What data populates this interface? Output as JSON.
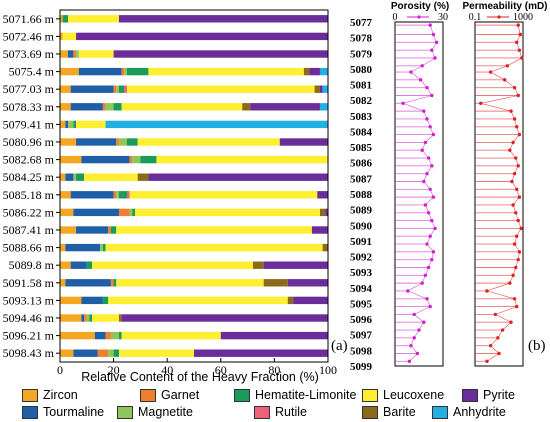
{
  "chart_data": [
    {
      "type": "bar",
      "orientation": "horizontal",
      "stacked": true,
      "panel_label": "(a)",
      "xlabel": "Relative Content of the Heavy Fraction (%)",
      "xlim": [
        0,
        100
      ],
      "xticks": [
        "0",
        "20",
        "40",
        "60",
        "80",
        "100"
      ],
      "categories": [
        "5071.66 m",
        "5072.46 m",
        "5073.69 m",
        "5075.4 m",
        "5077.03 m",
        "5078.33 m",
        "5079.41 m",
        "5080.96 m",
        "5082.68 m",
        "5084.25 m",
        "5085.18 m",
        "5086.22 m",
        "5087.41 m",
        "5088.66 m",
        "5089.8 m",
        "5091.58 m",
        "5093.13 m",
        "5094.46 m",
        "5096.21 m",
        "5098.43 m"
      ],
      "series": [
        {
          "name": "Zircon",
          "color": "#f5a623",
          "values": [
            1,
            1,
            3,
            7,
            4,
            4,
            2,
            6,
            8,
            2,
            4,
            5,
            6,
            2,
            4,
            2,
            8,
            8,
            13,
            5
          ]
        },
        {
          "name": "Tourmaline",
          "color": "#1f5fa8",
          "values": [
            0,
            0,
            2,
            16,
            16,
            12,
            1,
            15,
            18,
            3,
            16,
            17,
            12,
            13,
            6,
            17,
            8,
            1,
            4,
            9
          ]
        },
        {
          "name": "Garnet",
          "color": "#ef7f2f",
          "values": [
            0,
            0,
            1,
            1,
            1,
            1,
            0,
            1,
            1,
            0,
            1,
            4,
            1,
            0,
            0,
            1,
            0,
            1,
            2,
            4
          ]
        },
        {
          "name": "Magnetite",
          "color": "#8fc65a",
          "values": [
            0,
            0,
            1,
            1,
            1,
            3,
            2,
            3,
            3,
            1,
            1,
            1,
            0,
            1,
            0,
            0,
            0,
            1,
            3,
            2
          ]
        },
        {
          "name": "Hematite-Limonite",
          "color": "#1a9a5b",
          "values": [
            2,
            0,
            0,
            8,
            2,
            3,
            1,
            4,
            6,
            3,
            3,
            1,
            2,
            1,
            2,
            1,
            2,
            1,
            1,
            2
          ]
        },
        {
          "name": "Rutile",
          "color": "#f06078",
          "values": [
            0,
            0,
            0,
            0,
            1,
            0,
            0,
            0,
            0,
            0,
            1,
            0,
            0,
            0,
            0,
            0,
            0,
            0,
            0,
            0
          ]
        },
        {
          "name": "Leucoxene",
          "color": "#ffef2f",
          "values": [
            19,
            5,
            13,
            58,
            70,
            45,
            11,
            53,
            64,
            20,
            70,
            69,
            73,
            81,
            60,
            55,
            67,
            10,
            37,
            28
          ]
        },
        {
          "name": "Barite",
          "color": "#8b6a1a",
          "values": [
            0,
            0,
            0,
            2,
            2,
            3,
            0,
            0,
            0,
            4,
            0,
            2,
            0,
            2,
            4,
            9,
            2,
            1,
            0,
            0
          ]
        },
        {
          "name": "Pyrite",
          "color": "#6a2d9a",
          "values": [
            78,
            94,
            80,
            4,
            1,
            26,
            0,
            18,
            0,
            67,
            4,
            1,
            6,
            0,
            24,
            15,
            13,
            77,
            40,
            50
          ]
        },
        {
          "name": "Anhydrite",
          "color": "#22b0e2",
          "values": [
            0,
            0,
            0,
            3,
            2,
            3,
            83,
            0,
            0,
            0,
            0,
            0,
            0,
            0,
            0,
            0,
            0,
            0,
            0,
            0
          ]
        }
      ]
    },
    {
      "type": "line",
      "panel_label": "(b)",
      "depth_range": [
        5077,
        5099
      ],
      "depth_ticks": [
        "5077",
        "5078",
        "5079",
        "5080",
        "5081",
        "5082",
        "5083",
        "5084",
        "5085",
        "5086",
        "5087",
        "5088",
        "5089",
        "5090",
        "5091",
        "5092",
        "5093",
        "5094",
        "5095",
        "5096",
        "5097",
        "5098",
        "5099"
      ],
      "tracks": [
        {
          "title": "Porosity (%)",
          "color": "#d020d0",
          "xlim": [
            0,
            30
          ],
          "xticks": [
            "0",
            "30"
          ],
          "depth": [
            5077.2,
            5077.8,
            5078.3,
            5078.8,
            5079.3,
            5079.8,
            5080.2,
            5080.7,
            5081.2,
            5081.7,
            5082.2,
            5082.7,
            5083.2,
            5083.7,
            5084.2,
            5084.7,
            5085.2,
            5085.7,
            5086.2,
            5086.7,
            5087.2,
            5087.7,
            5088.2,
            5088.7,
            5089.2,
            5089.7,
            5090.2,
            5090.7,
            5091.2,
            5091.7,
            5092.2,
            5092.7,
            5093.2,
            5093.7,
            5094.2,
            5094.7,
            5095.2,
            5095.7,
            5096.2,
            5096.7,
            5097.2,
            5097.7,
            5098.2,
            5098.7
          ],
          "values": [
            22,
            24,
            26,
            23,
            25,
            17,
            10,
            16,
            20,
            23,
            5,
            18,
            20,
            22,
            24,
            19,
            17,
            21,
            23,
            20,
            18,
            22,
            24,
            19,
            21,
            23,
            25,
            22,
            20,
            24,
            23,
            21,
            19,
            17,
            8,
            20,
            22,
            12,
            18,
            15,
            12,
            10,
            14,
            9
          ]
        },
        {
          "title": "Permeability (mD)",
          "color": "#e02020",
          "scale": "log",
          "xlim": [
            0.1,
            1000
          ],
          "xticks": [
            "0.1",
            "1000"
          ],
          "depth": [
            5077.2,
            5077.8,
            5078.3,
            5078.8,
            5079.3,
            5079.8,
            5080.2,
            5080.7,
            5081.2,
            5081.7,
            5082.2,
            5082.7,
            5083.2,
            5083.7,
            5084.2,
            5084.7,
            5085.2,
            5085.7,
            5086.2,
            5086.7,
            5087.2,
            5087.7,
            5088.2,
            5088.7,
            5089.2,
            5089.7,
            5090.2,
            5090.7,
            5091.2,
            5091.7,
            5092.2,
            5092.7,
            5093.2,
            5093.7,
            5094.2,
            5094.7,
            5095.2,
            5095.7,
            5096.2,
            5096.7,
            5097.2,
            5097.7,
            5098.2,
            5098.7
          ],
          "values": [
            400,
            600,
            300,
            500,
            800,
            50,
            2,
            30,
            200,
            400,
            0.3,
            100,
            200,
            300,
            500,
            150,
            80,
            250,
            400,
            200,
            120,
            300,
            500,
            150,
            250,
            400,
            700,
            300,
            200,
            500,
            400,
            250,
            150,
            80,
            1,
            200,
            300,
            5,
            100,
            20,
            8,
            2,
            10,
            1
          ]
        }
      ]
    }
  ],
  "legend": [
    {
      "label": "Zircon",
      "color": "#f5a623"
    },
    {
      "label": "Garnet",
      "color": "#ef7f2f"
    },
    {
      "label": "Hematite-Limonite",
      "color": "#1a9a5b"
    },
    {
      "label": "Leucoxene",
      "color": "#ffef2f"
    },
    {
      "label": "Pyrite",
      "color": "#6a2d9a"
    },
    {
      "label": "Tourmaline",
      "color": "#1f5fa8"
    },
    {
      "label": "Magnetite",
      "color": "#8fc65a"
    },
    {
      "label": "Rutile",
      "color": "#f06078"
    },
    {
      "label": "Barite",
      "color": "#8b6a1a"
    },
    {
      "label": "Anhydrite",
      "color": "#22b0e2"
    }
  ]
}
